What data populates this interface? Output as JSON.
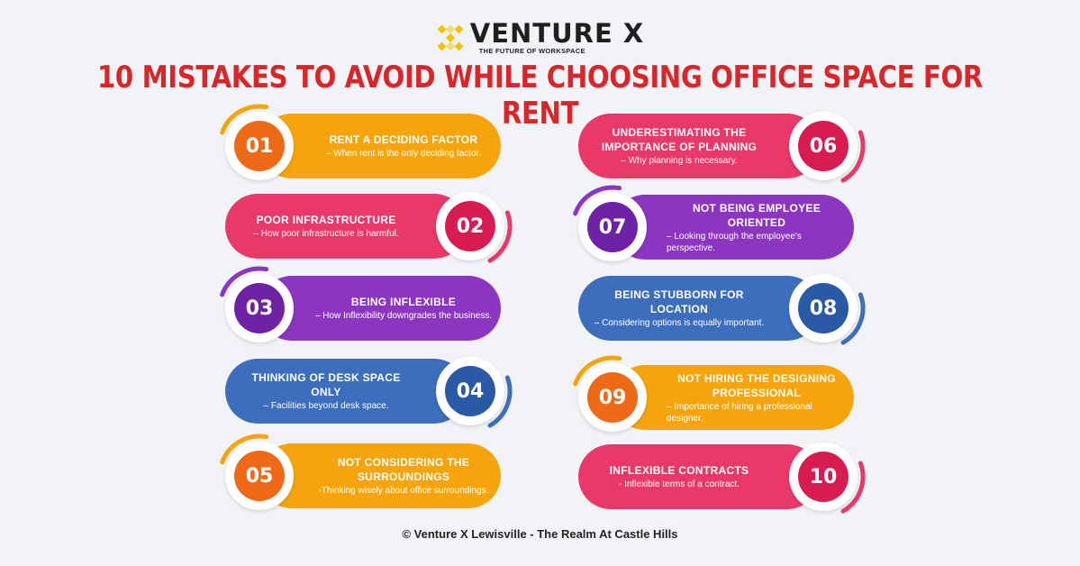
{
  "logo": {
    "name": "VENTURE X",
    "tagline": "THE FUTURE OF WORKSPACE"
  },
  "title": "10 MISTAKES TO AVOID WHILE CHOOSING OFFICE SPACE FOR RENT",
  "colors": {
    "orange": "#f5a50b",
    "pink": "#ea3868",
    "purple": "#8b35c0",
    "blue": "#3c6ebd",
    "title_red": "#d9262a"
  },
  "items": [
    {
      "number": "01",
      "title": "RENT A DECIDING FACTOR",
      "desc": "– When rent is the only deciding factor.",
      "pill_color": "#f5a50b",
      "num_color": "#ee6a17"
    },
    {
      "number": "02",
      "title": "POOR INFRASTRUCTURE",
      "desc": "– How poor infrastructure is harmful.",
      "pill_color": "#ea3868",
      "num_color": "#d81b50"
    },
    {
      "number": "03",
      "title": "BEING INFLEXIBLE",
      "desc": "– How Inflexibility downgrades the business.",
      "pill_color": "#8b35c0",
      "num_color": "#6e22a6"
    },
    {
      "number": "04",
      "title": "THINKING OF DESK SPACE ONLY",
      "desc": "– Facilities beyond desk space.",
      "pill_color": "#3c6ebd",
      "num_color": "#2a5aa5"
    },
    {
      "number": "05",
      "title": "NOT CONSIDERING THE SURROUNDINGS",
      "desc": "-Thinking wisely about office surroundings.",
      "pill_color": "#f5a50b",
      "num_color": "#ee6a17"
    },
    {
      "number": "06",
      "title": "UNDERESTIMATING THE IMPORTANCE OF PLANNING",
      "desc": "– Why planning is necessary.",
      "pill_color": "#ea3868",
      "num_color": "#d81b50"
    },
    {
      "number": "07",
      "title": "NOT BEING EMPLOYEE ORIENTED",
      "desc": "– Looking through the employee's perspective.",
      "pill_color": "#8b35c0",
      "num_color": "#6e22a6"
    },
    {
      "number": "08",
      "title": "BEING STUBBORN FOR LOCATION",
      "desc": "– Considering options is equally important.",
      "pill_color": "#3c6ebd",
      "num_color": "#2a5aa5"
    },
    {
      "number": "09",
      "title": "NOT HIRING THE DESIGNING PROFESSIONAL",
      "desc": "– Importance of hiring a professional designer.",
      "pill_color": "#f5a50b",
      "num_color": "#ee6a17"
    },
    {
      "number": "10",
      "title": "INFLEXIBLE CONTRACTS",
      "desc": "- Inflexible terms of a contract.",
      "pill_color": "#ea3868",
      "num_color": "#d81b50"
    }
  ],
  "footer": "© Venture X  Lewisville - The Realm At Castle Hills"
}
